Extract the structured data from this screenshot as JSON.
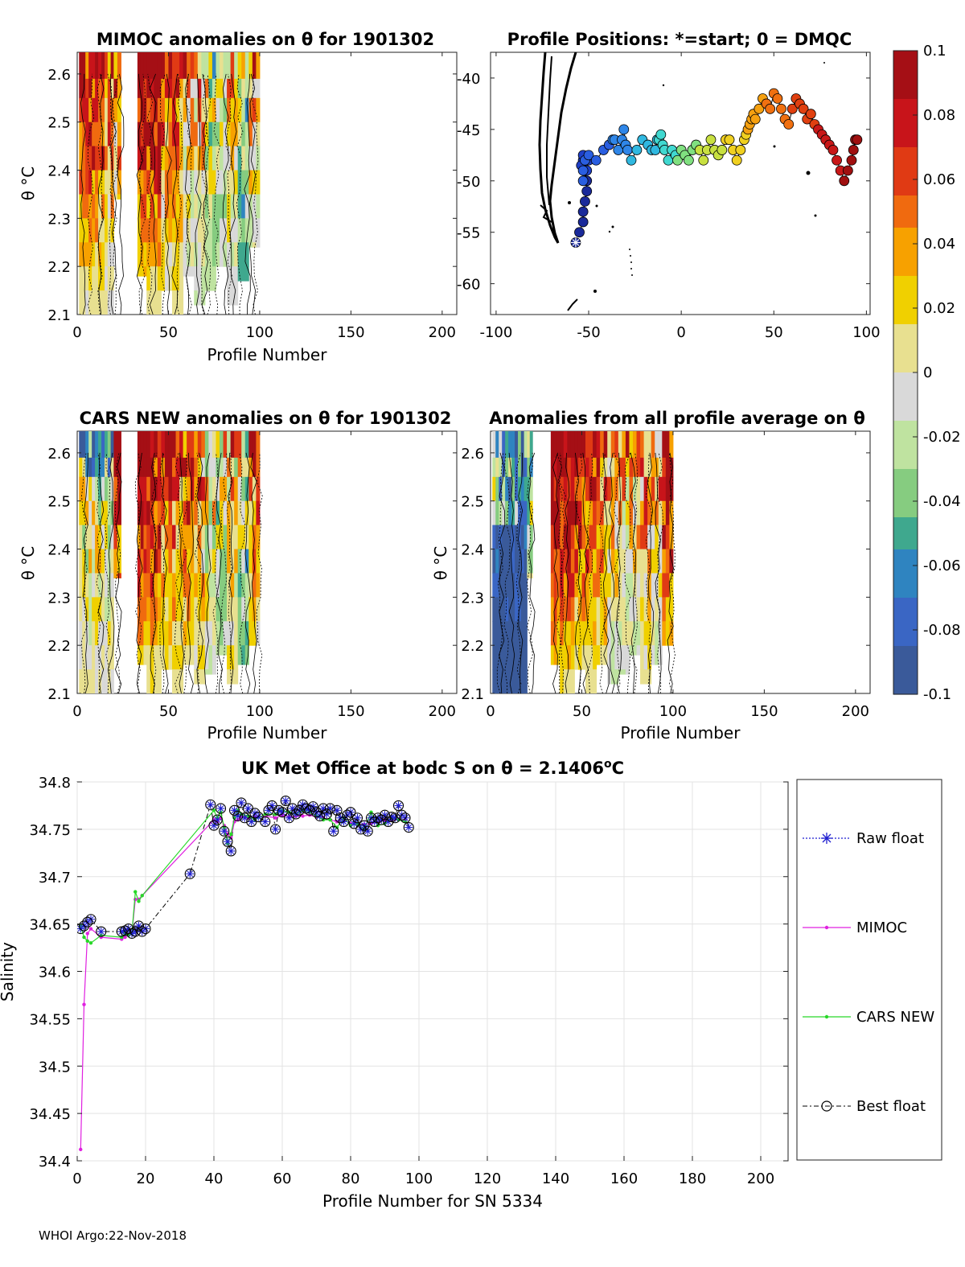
{
  "footer": "WHOI Argo:22-Nov-2018",
  "colorbar": {
    "ticks": [
      "0.1",
      "0.08",
      "0.06",
      "0.04",
      "0.02",
      "0",
      "-0.02",
      "-0.04",
      "-0.06",
      "-0.08",
      "-0.1"
    ],
    "colors": [
      "#a50f15",
      "#c8141a",
      "#e03a14",
      "#f06a0f",
      "#f7a100",
      "#f0d000",
      "#e8e090",
      "#d9d9d9",
      "#bfe3a0",
      "#86cc80",
      "#3fa88e",
      "#2f84c0",
      "#3a66c4",
      "#3a5a9a"
    ]
  },
  "panel1": {
    "title": "MIMOC anomalies on θ  for 1901302",
    "xlabel": "Profile Number",
    "ylabel": "θ °C",
    "xticks": [
      "0",
      "50",
      "100",
      "150",
      "200"
    ],
    "yticks": [
      "2.6",
      "2.5",
      "2.4",
      "2.3",
      "2.2",
      "2.1"
    ]
  },
  "panel2": {
    "title": "Profile Positions: *=start; 0 = DMQC",
    "xticks": [
      "-100",
      "-50",
      "0",
      "50",
      "100"
    ],
    "yticks": [
      "-40",
      "-45",
      "-50",
      "-55",
      "-60"
    ]
  },
  "panel3": {
    "title": "CARS NEW anomalies on θ for 1901302",
    "xlabel": "Profile Number",
    "ylabel": "θ °C",
    "xticks": [
      "0",
      "50",
      "100",
      "150",
      "200"
    ],
    "yticks": [
      "2.6",
      "2.5",
      "2.4",
      "2.3",
      "2.2",
      "2.1"
    ]
  },
  "panel4": {
    "title": "Anomalies from all profile average on θ",
    "xlabel": "Profile Number",
    "ylabel": "θ °C",
    "xticks": [
      "0",
      "50",
      "100",
      "150",
      "200"
    ],
    "yticks": [
      "2.6",
      "2.5",
      "2.4",
      "2.3",
      "2.2",
      "2.1"
    ]
  },
  "chart_data": [
    {
      "type": "heatmap",
      "title": "MIMOC anomalies on θ  for 1901302",
      "xlabel": "Profile Number",
      "ylabel": "θ °C",
      "xlim": [
        0,
        208
      ],
      "ylim": [
        2.1,
        2.645
      ],
      "profile_blocks": [
        [
          1,
          8
        ],
        [
          8,
          15
        ],
        [
          15,
          20
        ],
        [
          20,
          24
        ],
        [
          33,
          40
        ],
        [
          40,
          46
        ],
        [
          46,
          52
        ],
        [
          52,
          58
        ],
        [
          58,
          64
        ],
        [
          64,
          70
        ],
        [
          70,
          76
        ],
        [
          76,
          82
        ],
        [
          82,
          88
        ],
        [
          88,
          94
        ],
        [
          94,
          100
        ]
      ],
      "profile_min_theta": [
        2.1,
        2.1,
        2.1,
        2.34,
        2.18,
        2.1,
        2.15,
        2.1,
        2.18,
        2.1,
        2.15,
        2.2,
        2.1,
        2.15,
        2.24
      ],
      "theta_bins": [
        2.6,
        2.5,
        2.45,
        2.4,
        2.3,
        2.2,
        2.1
      ],
      "anomaly_pattern": [
        [
          0.08,
          0.09,
          0.07,
          0.1,
          0.1,
          0.09,
          0.1,
          0.1,
          0.06,
          0.1,
          0.09,
          0.05,
          0.08,
          0.06,
          0.07
        ],
        [
          0.1,
          0.05,
          0.02,
          0.03,
          0.09,
          0.1,
          0.08,
          0.06,
          0.04,
          0.08,
          0.05,
          -0.02,
          0.03,
          -0.04,
          0.05
        ],
        [
          0.03,
          0.02,
          0.0,
          0.01,
          0.05,
          0.08,
          0.03,
          0.04,
          0.02,
          0.03,
          -0.06,
          -0.05,
          0.02,
          -0.08,
          -0.03
        ],
        [
          0.02,
          0.01,
          0.01,
          0.0,
          0.03,
          0.02,
          -0.01,
          0.01,
          -0.03,
          -0.02,
          -0.04,
          -0.06,
          -0.02,
          -0.05,
          0.0
        ],
        [
          0.01,
          0.0,
          0.0,
          0.0,
          0.02,
          0.01,
          0.0,
          -0.01,
          -0.02,
          -0.03,
          -0.02,
          -0.03,
          0.0,
          -0.01,
          0.01
        ],
        [
          0.01,
          0.0,
          0.0,
          0.0,
          0.0,
          0.01,
          0.0,
          0.0,
          -0.01,
          0.0,
          0.0,
          -0.01,
          0.0,
          0.0,
          0.0
        ]
      ],
      "colorbar_range": [
        -0.1,
        0.1
      ]
    },
    {
      "type": "scatter",
      "title": "Profile Positions: *=start; 0 = DMQC",
      "xlim": [
        -103,
        102
      ],
      "ylim": [
        -63,
        -37.5
      ],
      "start": {
        "x": -57,
        "y": -56
      },
      "positions_x": [
        -55,
        -53,
        -53,
        -52,
        -51,
        -51,
        -52,
        -53,
        -53,
        -54,
        -52,
        -51,
        -50,
        -51,
        -53,
        -53,
        -52,
        -50,
        -46,
        -42,
        -39,
        -37,
        -36,
        -34,
        -32,
        -31,
        -30,
        -29,
        -27,
        -24,
        -21,
        -18,
        -16,
        -14,
        -13,
        -12,
        -11,
        -10,
        -9,
        -7,
        -5,
        -3,
        -2,
        0,
        2,
        4,
        6,
        8,
        10,
        12,
        14,
        16,
        18,
        20,
        22,
        24,
        26,
        28,
        30,
        32,
        34,
        35,
        36,
        37,
        38,
        39,
        40,
        42,
        44,
        46,
        48,
        50,
        52,
        54,
        56,
        58,
        60,
        62,
        64,
        66,
        68,
        70,
        72,
        74,
        76,
        78,
        80,
        82,
        84,
        86,
        88,
        90,
        92,
        93,
        94,
        95
      ],
      "positions_y": [
        -55,
        -54,
        -53,
        -52,
        -51,
        -50,
        -49,
        -48,
        -47.5,
        -48.5,
        -49,
        -48,
        -48,
        -49,
        -50,
        -49,
        -48,
        -47.5,
        -48,
        -47,
        -46.5,
        -46,
        -46,
        -47,
        -46,
        -45,
        -46.5,
        -47,
        -48,
        -47,
        -46,
        -46.5,
        -47,
        -47,
        -46,
        -46,
        -45.5,
        -46.5,
        -47,
        -48,
        -47,
        -47.5,
        -48,
        -47,
        -47.5,
        -48,
        -47,
        -46.5,
        -47,
        -48,
        -47,
        -46,
        -47,
        -47.5,
        -47,
        -46,
        -46,
        -47,
        -48,
        -47,
        -46,
        -45.5,
        -45,
        -44.5,
        -44,
        -43.5,
        -44,
        -43,
        -42,
        -42.5,
        -43,
        -41.5,
        -42,
        -43,
        -44,
        -44.5,
        -43,
        -42,
        -42.5,
        -43,
        -44,
        -43.5,
        -44.5,
        -45,
        -45.5,
        -46,
        -46.5,
        -47,
        -48,
        -49,
        -50,
        -49,
        -48,
        -47,
        -46,
        -46
      ],
      "colorbar_range": [
        -0.1,
        0.1
      ]
    },
    {
      "type": "heatmap",
      "title": "CARS NEW anomalies on θ for 1901302",
      "xlabel": "Profile Number",
      "ylabel": "θ °C",
      "xlim": [
        0,
        208
      ],
      "ylim": [
        2.1,
        2.645
      ],
      "colorbar_range": [
        -0.1,
        0.1
      ]
    },
    {
      "type": "heatmap",
      "title": "Anomalies from all profile average on θ",
      "xlabel": "Profile Number",
      "ylabel": "θ °C",
      "xlim": [
        0,
        208
      ],
      "ylim": [
        2.1,
        2.645
      ],
      "colorbar_range": [
        -0.1,
        0.1
      ]
    },
    {
      "type": "line",
      "title": "UK Met Office at bodc S on θ = 2.1406",
      "title_sup": "o",
      "title_suffix": "C",
      "xlabel": "Profile Number for SN 5334",
      "ylabel": "Salinity",
      "xlim": [
        0,
        208
      ],
      "ylim": [
        34.4,
        34.8
      ],
      "xticks": [
        "0",
        "20",
        "40",
        "60",
        "80",
        "100",
        "120",
        "140",
        "160",
        "180",
        "200"
      ],
      "yticks": [
        "34.8",
        "34.75",
        "34.7",
        "34.65",
        "34.6",
        "34.55",
        "34.5",
        "34.45",
        "34.4"
      ],
      "legend": [
        "Raw float",
        "MIMOC",
        "CARS NEW",
        "Best float"
      ],
      "series": [
        {
          "name": "Best float",
          "x": [
            1,
            2,
            3,
            4,
            7,
            13,
            14,
            15,
            16,
            17,
            18,
            19,
            20,
            33,
            39,
            40,
            41,
            42,
            43,
            44,
            45,
            46,
            47,
            48,
            49,
            50,
            51,
            52,
            53,
            55,
            56,
            57,
            58,
            59,
            60,
            61,
            62,
            63,
            64,
            65,
            66,
            67,
            68,
            69,
            70,
            71,
            72,
            73,
            74,
            75,
            76,
            77,
            78,
            79,
            80,
            81,
            82,
            83,
            84,
            85,
            86,
            87,
            88,
            89,
            90,
            91,
            92,
            93,
            94,
            95,
            96,
            97
          ],
          "values": [
            34.645,
            34.648,
            34.652,
            34.655,
            34.642,
            34.642,
            34.643,
            34.645,
            34.64,
            34.642,
            34.648,
            34.642,
            34.645,
            34.703,
            34.776,
            34.754,
            34.76,
            34.772,
            34.748,
            34.737,
            34.727,
            34.77,
            34.764,
            34.778,
            34.762,
            34.772,
            34.758,
            34.767,
            34.763,
            34.758,
            34.77,
            34.775,
            34.75,
            34.77,
            34.768,
            34.78,
            34.762,
            34.772,
            34.766,
            34.77,
            34.776,
            34.772,
            34.77,
            34.774,
            34.768,
            34.764,
            34.772,
            34.766,
            34.772,
            34.748,
            34.77,
            34.762,
            34.758,
            34.765,
            34.768,
            34.756,
            34.762,
            34.75,
            34.754,
            34.748,
            34.762,
            34.758,
            34.762,
            34.76,
            34.765,
            34.758,
            34.763,
            34.762,
            34.775,
            34.765,
            34.762,
            34.752
          ]
        },
        {
          "name": "Raw float",
          "x": [
            1,
            2,
            3,
            4,
            7,
            13,
            14,
            15,
            16,
            17,
            18,
            19,
            20,
            33,
            39,
            40,
            41,
            42,
            43,
            44,
            45,
            46,
            47,
            48,
            49,
            50,
            51,
            52,
            53,
            55,
            56,
            57,
            58,
            59,
            60,
            61,
            62,
            63,
            64,
            65,
            66,
            67,
            68,
            69,
            70,
            71,
            72,
            73,
            74,
            75,
            76,
            77,
            78,
            79,
            80,
            81,
            82,
            83,
            84,
            85,
            86,
            87,
            88,
            89,
            90,
            91,
            92,
            93,
            94,
            95,
            96,
            97
          ],
          "values": [
            34.645,
            34.648,
            34.652,
            34.655,
            34.642,
            34.642,
            34.643,
            34.645,
            34.64,
            34.642,
            34.648,
            34.642,
            34.645,
            34.703,
            34.776,
            34.754,
            34.76,
            34.772,
            34.748,
            34.737,
            34.727,
            34.77,
            34.764,
            34.778,
            34.762,
            34.772,
            34.758,
            34.767,
            34.763,
            34.758,
            34.77,
            34.775,
            34.75,
            34.77,
            34.768,
            34.78,
            34.762,
            34.772,
            34.766,
            34.77,
            34.776,
            34.772,
            34.77,
            34.774,
            34.768,
            34.764,
            34.772,
            34.766,
            34.772,
            34.748,
            34.77,
            34.762,
            34.758,
            34.765,
            34.768,
            34.756,
            34.762,
            34.75,
            34.754,
            34.748,
            34.762,
            34.758,
            34.762,
            34.76,
            34.765,
            34.758,
            34.763,
            34.762,
            34.775,
            34.765,
            34.762,
            34.752
          ]
        },
        {
          "name": "MIMOC",
          "x": [
            1,
            2,
            3,
            4,
            7,
            13,
            14,
            15,
            16,
            17,
            18,
            19,
            40,
            41,
            42,
            43,
            44,
            45,
            46,
            47,
            48,
            50,
            52,
            55,
            58,
            60,
            62,
            64,
            66,
            68,
            70,
            72,
            74,
            76,
            78,
            80,
            82,
            84,
            86,
            88,
            90,
            92,
            94,
            96
          ],
          "values": [
            34.412,
            34.565,
            34.64,
            34.645,
            34.636,
            34.634,
            34.636,
            34.638,
            34.64,
            34.676,
            34.676,
            34.68,
            34.76,
            34.758,
            34.762,
            34.754,
            34.745,
            34.741,
            34.758,
            34.76,
            34.764,
            34.762,
            34.763,
            34.764,
            34.762,
            34.765,
            34.763,
            34.764,
            34.764,
            34.765,
            34.763,
            34.762,
            34.76,
            34.758,
            34.76,
            34.756,
            34.755,
            34.755,
            34.756,
            34.757,
            34.76,
            34.76,
            34.76,
            34.76
          ]
        },
        {
          "name": "CARS NEW",
          "x": [
            1,
            2,
            3,
            4,
            7,
            13,
            14,
            15,
            16,
            17,
            18,
            19,
            40,
            41,
            42,
            43,
            44,
            45,
            46,
            47,
            48,
            50,
            52,
            55,
            58,
            60,
            62,
            64,
            66,
            68,
            70,
            72,
            74,
            76,
            78,
            80,
            82,
            84,
            86,
            88,
            90,
            92,
            94,
            96
          ],
          "values": [
            34.648,
            34.636,
            34.632,
            34.63,
            34.638,
            34.636,
            34.64,
            34.638,
            34.64,
            34.684,
            34.674,
            34.68,
            34.77,
            34.762,
            34.768,
            34.752,
            34.735,
            34.745,
            34.762,
            34.77,
            34.766,
            34.764,
            34.76,
            34.766,
            34.766,
            34.77,
            34.768,
            34.766,
            34.77,
            34.768,
            34.764,
            34.76,
            34.76,
            34.752,
            34.762,
            34.754,
            34.756,
            34.75,
            34.768,
            34.754,
            34.756,
            34.762,
            34.76,
            34.758
          ]
        }
      ]
    }
  ]
}
